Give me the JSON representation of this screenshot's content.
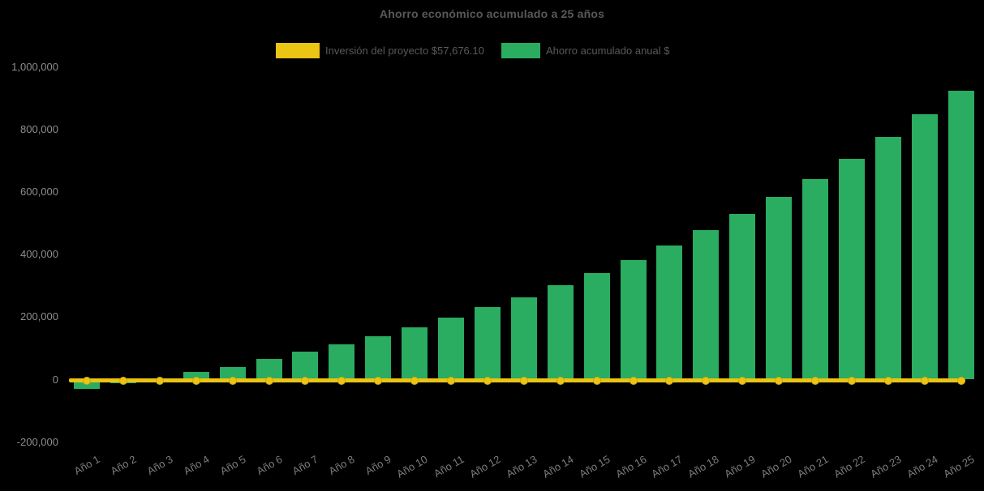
{
  "title": "Ahorro económico acumulado a 25 años",
  "legend": {
    "investment": {
      "label": "Inversión del proyecto $57,676.10",
      "color": "#EBC414"
    },
    "savings": {
      "label": "Ahorro acumulado anual $",
      "color": "#2AAC61"
    }
  },
  "chart_data": {
    "type": "bar",
    "title": "Ahorro económico acumulado a 25 años",
    "background": "#000000",
    "grid": false,
    "legend_position": "top",
    "xlabel": "",
    "ylabel": "",
    "ylim": [
      -200000,
      1000000
    ],
    "categories": [
      "Año 1",
      "Año 2",
      "Año 3",
      "Año 4",
      "Año 5",
      "Año 6",
      "Año 7",
      "Año 8",
      "Año 9",
      "Año 10",
      "Año 11",
      "Año 12",
      "Año 13",
      "Año 14",
      "Año 15",
      "Año 16",
      "Año 17",
      "Año 18",
      "Año 19",
      "Año 20",
      "Año 21",
      "Año 22",
      "Año 23",
      "Año 24",
      "Año 25"
    ],
    "yticks": [
      {
        "value": 1000000,
        "label": "1,000,000"
      },
      {
        "value": 800000,
        "label": "800,000"
      },
      {
        "value": 600000,
        "label": "600,000"
      },
      {
        "value": 400000,
        "label": "400,000"
      },
      {
        "value": 200000,
        "label": "200,000"
      },
      {
        "value": 0,
        "label": "0"
      },
      {
        "value": -200000,
        "label": "-200,000"
      }
    ],
    "series": [
      {
        "name": "Inversión del proyecto $57,676.10",
        "type": "line",
        "color": "#EBC414",
        "marker": "circle",
        "investment_amount": "$57,676.10",
        "constant_value": 0
      },
      {
        "name": "Ahorro acumulado anual $",
        "type": "bar",
        "color": "#2AAC61",
        "values": [
          -31000,
          -12000,
          -10000,
          24000,
          41000,
          67000,
          89000,
          113000,
          139000,
          167000,
          197000,
          231000,
          264000,
          302000,
          340000,
          383000,
          429000,
          477000,
          530000,
          583000,
          642000,
          706000,
          775000,
          848000,
          924000
        ]
      }
    ]
  }
}
